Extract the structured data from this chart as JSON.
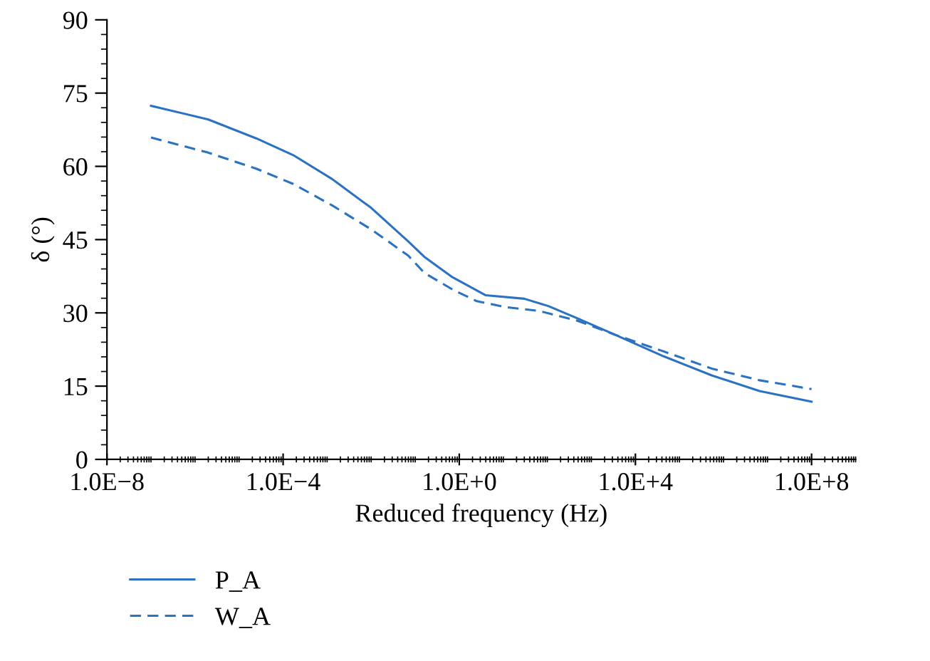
{
  "chart_data": {
    "type": "line",
    "xlabel": "Reduced frequency (Hz)",
    "ylabel": "δ (°)",
    "log": "x",
    "xlim": [
      1e-08,
      1000000000.0
    ],
    "ylim": [
      0,
      90
    ],
    "xticks": [
      {
        "value": 1e-08,
        "label": "1.0E−8"
      },
      {
        "value": 0.0001,
        "label": "1.0E−4"
      },
      {
        "value": 1,
        "label": "1.0E+0"
      },
      {
        "value": 10000.0,
        "label": "1.0E+4"
      },
      {
        "value": 100000000.0,
        "label": "1.0E+8"
      }
    ],
    "yticks": [
      0,
      15,
      30,
      45,
      60,
      75,
      90
    ],
    "grid": false,
    "legend": "bottom left",
    "series": [
      {
        "name": "P_A",
        "color": "#2b72c2",
        "line_style": "solid",
        "x": [
          1e-07,
          2e-06,
          2.5e-05,
          0.00017,
          0.0013,
          0.01,
          0.07,
          0.16,
          0.7,
          4,
          30,
          105,
          480,
          3500,
          44000.0,
          540000.0,
          6600000.0,
          100000000.0
        ],
        "values": [
          72.4,
          69.6,
          65.7,
          62.3,
          57.4,
          51.5,
          44.6,
          41.5,
          37.3,
          33.6,
          32.9,
          31.4,
          28.9,
          25.5,
          21.1,
          17.2,
          14.0,
          11.8
        ]
      },
      {
        "name": "W_A",
        "color": "#2b72c2",
        "line_style": "dashed",
        "x": [
          1e-07,
          2e-06,
          2.5e-05,
          0.00017,
          0.0013,
          0.01,
          0.07,
          0.16,
          0.7,
          2.5,
          11,
          65,
          480,
          3500,
          44000.0,
          540000.0,
          6600000.0,
          100000000.0
        ],
        "values": [
          65.9,
          62.8,
          59.5,
          56.4,
          52.0,
          47.1,
          41.7,
          38.2,
          34.8,
          32.4,
          31.2,
          30.4,
          28.4,
          25.5,
          22.1,
          18.6,
          16.2,
          14.4
        ]
      }
    ]
  }
}
